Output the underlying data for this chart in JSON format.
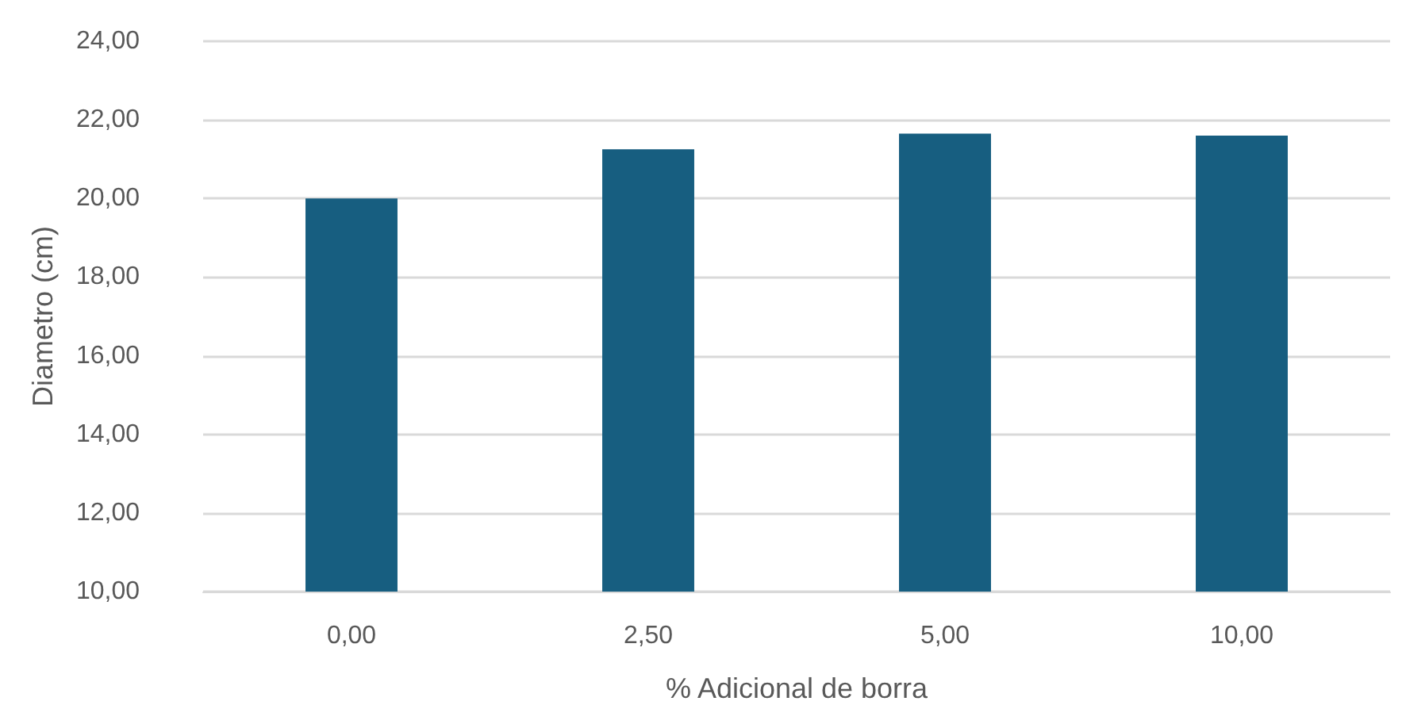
{
  "chart_data": {
    "type": "bar",
    "xlabel": "% Adicional de borra",
    "ylabel": "Diametro (cm)",
    "categories": [
      "0,00",
      "2,50",
      "5,00",
      "10,00"
    ],
    "values": [
      20.0,
      21.25,
      21.65,
      21.6
    ],
    "color": "#175e80",
    "ylim": [
      10,
      24
    ],
    "yticks": [
      {
        "value": 10,
        "label": "10,00"
      },
      {
        "value": 12,
        "label": "12,00"
      },
      {
        "value": 14,
        "label": "14,00"
      },
      {
        "value": 16,
        "label": "16,00"
      },
      {
        "value": 18,
        "label": "18,00"
      },
      {
        "value": 20,
        "label": "20,00"
      },
      {
        "value": 22,
        "label": "22,00"
      },
      {
        "value": 24,
        "label": "24,00"
      }
    ],
    "grid": "y"
  }
}
